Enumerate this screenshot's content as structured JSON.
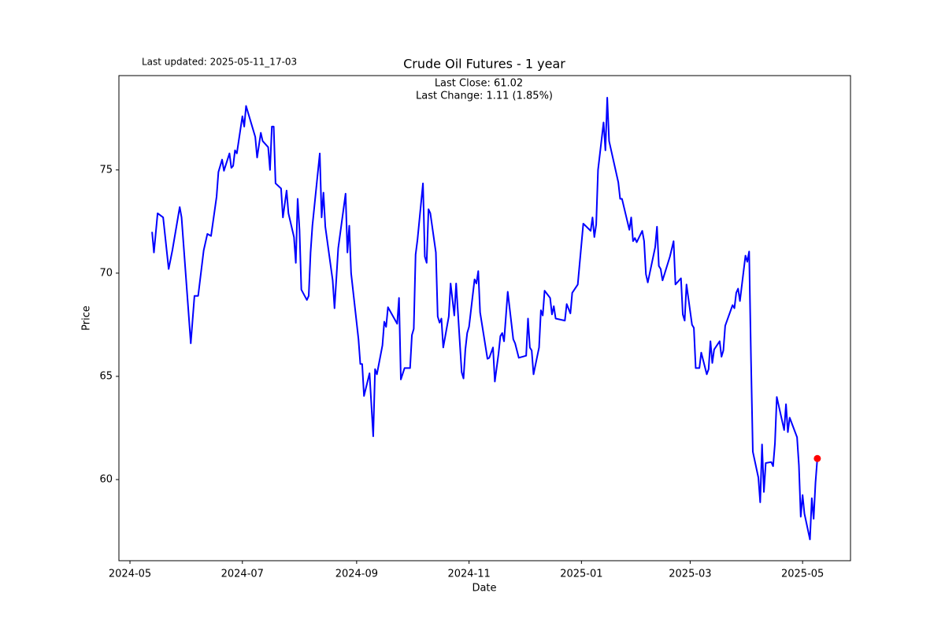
{
  "chart_data": {
    "type": "line",
    "title": "Crude Oil Futures - 1 year",
    "subtitle": "Last updated: 2025-05-11_17-03",
    "annotations": [
      "Last Close: 61.02",
      "Last Change: 1.11 (1.85%)"
    ],
    "x_label": "Date",
    "y_label": "Price",
    "color": "#0000ff",
    "last_point_color": "#ff0000",
    "x": [
      "2024-05-13",
      "2024-05-14",
      "2024-05-16",
      "2024-05-19",
      "2024-05-22",
      "2024-05-24",
      "2024-05-28",
      "2024-05-29",
      "2024-06-03",
      "2024-06-05",
      "2024-06-07",
      "2024-06-10",
      "2024-06-12",
      "2024-06-14",
      "2024-06-17",
      "2024-06-18",
      "2024-06-20",
      "2024-06-21",
      "2024-06-24",
      "2024-06-25",
      "2024-06-26",
      "2024-06-27",
      "2024-06-28",
      "2024-07-01",
      "2024-07-02",
      "2024-07-03",
      "2024-07-08",
      "2024-07-09",
      "2024-07-11",
      "2024-07-12",
      "2024-07-15",
      "2024-07-16",
      "2024-07-17",
      "2024-07-18",
      "2024-07-19",
      "2024-07-22",
      "2024-07-23",
      "2024-07-25",
      "2024-07-26",
      "2024-07-29",
      "2024-07-30",
      "2024-07-31",
      "2024-08-01",
      "2024-08-02",
      "2024-08-05",
      "2024-08-06",
      "2024-08-07",
      "2024-08-08",
      "2024-08-12",
      "2024-08-13",
      "2024-08-14",
      "2024-08-15",
      "2024-08-19",
      "2024-08-20",
      "2024-08-22",
      "2024-08-26",
      "2024-08-27",
      "2024-08-28",
      "2024-08-29",
      "2024-09-02",
      "2024-09-03",
      "2024-09-04",
      "2024-09-05",
      "2024-09-08",
      "2024-09-10",
      "2024-09-11",
      "2024-09-12",
      "2024-09-15",
      "2024-09-16",
      "2024-09-17",
      "2024-09-18",
      "2024-09-23",
      "2024-09-24",
      "2024-09-25",
      "2024-09-27",
      "2024-09-30",
      "2024-10-01",
      "2024-10-02",
      "2024-10-03",
      "2024-10-04",
      "2024-10-07",
      "2024-10-08",
      "2024-10-09",
      "2024-10-10",
      "2024-10-11",
      "2024-10-14",
      "2024-10-15",
      "2024-10-16",
      "2024-10-17",
      "2024-10-18",
      "2024-10-21",
      "2024-10-22",
      "2024-10-24",
      "2024-10-25",
      "2024-10-28",
      "2024-10-29",
      "2024-10-30",
      "2024-10-31",
      "2024-11-01",
      "2024-11-04",
      "2024-11-05",
      "2024-11-06",
      "2024-11-07",
      "2024-11-11",
      "2024-11-12",
      "2024-11-14",
      "2024-11-15",
      "2024-11-17",
      "2024-11-18",
      "2024-11-19",
      "2024-11-20",
      "2024-11-22",
      "2024-11-25",
      "2024-11-26",
      "2024-11-28",
      "2024-12-02",
      "2024-12-03",
      "2024-12-04",
      "2024-12-05",
      "2024-12-06",
      "2024-12-09",
      "2024-12-10",
      "2024-12-11",
      "2024-12-12",
      "2024-12-15",
      "2024-12-16",
      "2024-12-17",
      "2024-12-18",
      "2024-12-23",
      "2024-12-24",
      "2024-12-26",
      "2024-12-27",
      "2024-12-30",
      "2025-01-02",
      "2025-01-06",
      "2025-01-07",
      "2025-01-08",
      "2025-01-09",
      "2025-01-10",
      "2025-01-13",
      "2025-01-14",
      "2025-01-15",
      "2025-01-16",
      "2025-01-21",
      "2025-01-22",
      "2025-01-23",
      "2025-01-27",
      "2025-01-28",
      "2025-01-29",
      "2025-01-30",
      "2025-01-31",
      "2025-02-03",
      "2025-02-04",
      "2025-02-05",
      "2025-02-06",
      "2025-02-10",
      "2025-02-11",
      "2025-02-12",
      "2025-02-13",
      "2025-02-14",
      "2025-02-18",
      "2025-02-20",
      "2025-02-21",
      "2025-02-24",
      "2025-02-25",
      "2025-02-26",
      "2025-02-27",
      "2025-03-02",
      "2025-03-03",
      "2025-03-04",
      "2025-03-06",
      "2025-03-07",
      "2025-03-10",
      "2025-03-11",
      "2025-03-12",
      "2025-03-13",
      "2025-03-14",
      "2025-03-17",
      "2025-03-18",
      "2025-03-19",
      "2025-03-20",
      "2025-03-24",
      "2025-03-25",
      "2025-03-26",
      "2025-03-27",
      "2025-03-28",
      "2025-03-31",
      "2025-04-01",
      "2025-04-02",
      "2025-04-03",
      "2025-04-04",
      "2025-04-07",
      "2025-04-08",
      "2025-04-09",
      "2025-04-10",
      "2025-04-11",
      "2025-04-14",
      "2025-04-15",
      "2025-04-16",
      "2025-04-17",
      "2025-04-21",
      "2025-04-22",
      "2025-04-23",
      "2025-04-24",
      "2025-04-28",
      "2025-04-29",
      "2025-04-30",
      "2025-05-01",
      "2025-05-02",
      "2025-05-05",
      "2025-05-06",
      "2025-05-07",
      "2025-05-08",
      "2025-05-09"
    ],
    "values": [
      72.0,
      71.0,
      72.9,
      72.7,
      70.2,
      71.1,
      73.2,
      72.7,
      66.6,
      68.9,
      68.9,
      71.1,
      71.9,
      71.8,
      73.7,
      74.9,
      75.5,
      74.96,
      75.8,
      75.1,
      75.2,
      75.95,
      75.8,
      77.6,
      77.1,
      78.1,
      76.6,
      75.6,
      76.8,
      76.4,
      76.1,
      75.0,
      77.1,
      77.1,
      74.35,
      74.1,
      72.7,
      74.0,
      72.9,
      71.75,
      70.5,
      73.6,
      72.1,
      69.2,
      68.7,
      68.9,
      71.0,
      72.3,
      75.8,
      72.7,
      73.9,
      72.25,
      69.65,
      68.3,
      71.2,
      73.85,
      71.0,
      72.3,
      70.0,
      66.8,
      65.6,
      65.6,
      64.05,
      65.15,
      62.1,
      65.35,
      65.1,
      66.5,
      67.65,
      67.4,
      68.35,
      67.55,
      68.8,
      64.85,
      65.4,
      65.4,
      67.0,
      67.3,
      70.9,
      71.6,
      74.35,
      70.8,
      70.5,
      73.1,
      72.9,
      71.0,
      67.9,
      67.6,
      67.8,
      66.4,
      67.9,
      69.5,
      67.95,
      69.5,
      65.2,
      64.9,
      66.3,
      67.1,
      67.4,
      69.7,
      69.5,
      70.1,
      68.1,
      65.85,
      65.9,
      66.4,
      64.75,
      66.1,
      66.95,
      67.1,
      66.7,
      69.1,
      66.8,
      66.6,
      65.9,
      66.0,
      67.8,
      66.4,
      66.25,
      65.1,
      66.4,
      68.2,
      67.95,
      69.15,
      68.8,
      68.0,
      68.4,
      67.8,
      67.7,
      68.5,
      68.05,
      69.05,
      69.45,
      72.4,
      72.05,
      72.7,
      71.75,
      72.35,
      75.0,
      77.3,
      75.95,
      78.5,
      76.4,
      74.4,
      73.6,
      73.6,
      72.1,
      72.7,
      71.55,
      71.7,
      71.5,
      72.05,
      71.55,
      69.95,
      69.55,
      71.25,
      72.25,
      70.35,
      70.2,
      69.65,
      70.8,
      71.55,
      69.45,
      69.75,
      68.0,
      67.7,
      69.45,
      67.5,
      67.35,
      65.4,
      65.4,
      66.15,
      65.1,
      65.35,
      66.7,
      65.65,
      66.3,
      66.7,
      65.95,
      66.25,
      67.45,
      68.45,
      68.3,
      69.05,
      69.25,
      68.65,
      70.85,
      70.55,
      71.05,
      65.85,
      61.35,
      60.1,
      58.9,
      61.7,
      59.4,
      60.8,
      60.85,
      60.65,
      61.75,
      64.0,
      62.4,
      63.65,
      62.3,
      63.0,
      62.05,
      60.7,
      58.2,
      59.25,
      58.35,
      57.1,
      59.1,
      58.1,
      59.85,
      61.02
    ],
    "xlim": [
      "2024-04-25",
      "2025-05-27"
    ],
    "xticks": [
      {
        "value": "2024-05-01",
        "label": "2024-05"
      },
      {
        "value": "2024-07-01",
        "label": "2024-07"
      },
      {
        "value": "2024-09-01",
        "label": "2024-09"
      },
      {
        "value": "2024-11-01",
        "label": "2024-11"
      },
      {
        "value": "2025-01-01",
        "label": "2025-01"
      },
      {
        "value": "2025-03-01",
        "label": "2025-03"
      },
      {
        "value": "2025-05-01",
        "label": "2025-05"
      }
    ],
    "ylim": [
      56.07,
      79.57
    ],
    "yticks": [
      60,
      65,
      70,
      75
    ],
    "grid": false
  }
}
